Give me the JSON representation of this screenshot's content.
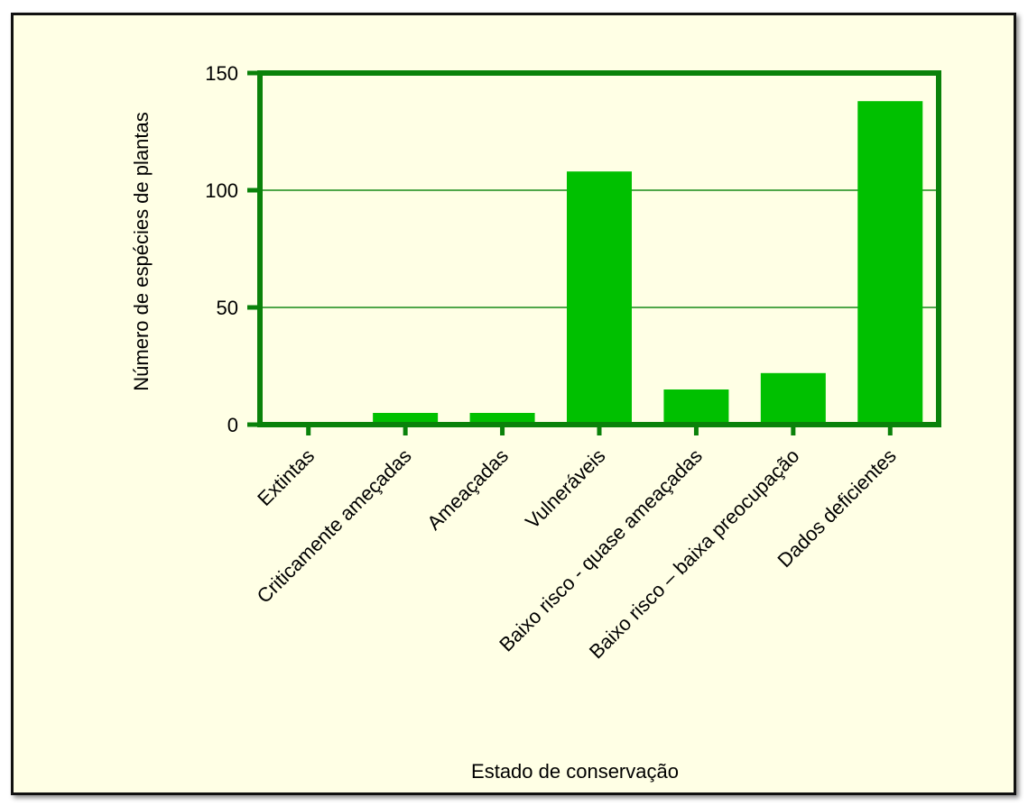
{
  "chart_data": {
    "type": "bar",
    "title": "",
    "xlabel": "Estado de conservação",
    "ylabel": "Número de espécies de plantas",
    "categories": [
      "Extintas",
      "Criticamente ameçadas",
      "Ameaçadas",
      "Vulneráveis",
      "Baixo risco - quase ameaçadas",
      "Baixo risco – baixa  preocupação",
      "Dados deficientes"
    ],
    "values": [
      0,
      5,
      5,
      108,
      15,
      22,
      138
    ],
    "ylim": [
      0,
      150
    ],
    "yticks": [
      "0",
      "50",
      "100",
      "150"
    ],
    "grid": true,
    "legend": "none",
    "colors": {
      "bar": "#00c000",
      "axis": "#0a820a",
      "grid": "#168a16",
      "background": "#ffffe5",
      "frame": "#111111"
    }
  }
}
